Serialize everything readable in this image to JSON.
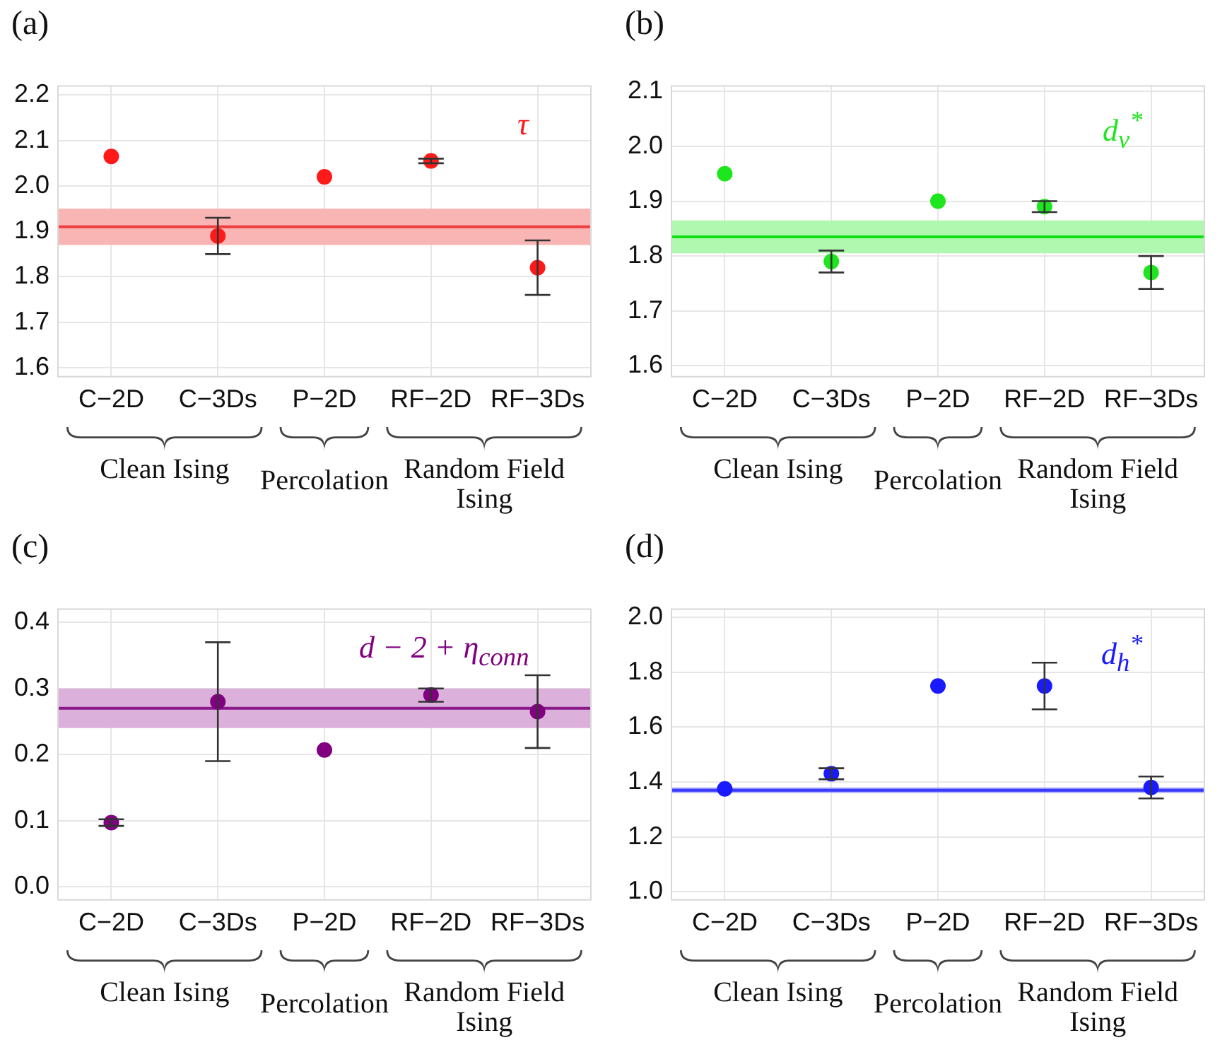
{
  "chart_data": [
    {
      "type": "scatter",
      "title": "(a)",
      "categories": [
        "C−2D",
        "C−3Ds",
        "P−2D",
        "RF−2D",
        "RF−3Ds"
      ],
      "series": [
        {
          "name": "τ",
          "color": "#ff1a1a",
          "values": [
            2.065,
            1.89,
            2.02,
            2.055,
            1.82
          ],
          "errors": [
            null,
            [
              1.85,
              1.93
            ],
            null,
            [
              2.05,
              2.06
            ],
            [
              1.76,
              1.88
            ]
          ]
        }
      ],
      "ylim": [
        1.58,
        2.22
      ],
      "yticks": [
        1.6,
        1.7,
        1.8,
        1.9,
        {
          "value": 2,
          "label": "2.0"
        },
        2.1,
        2.2
      ],
      "ref_lines": [
        {
          "axis": "y",
          "value": 1.91,
          "color": "#f03c3c"
        }
      ],
      "bands": [
        {
          "axis": "y",
          "from": 1.87,
          "to": 1.95,
          "color": "#f9b4b4"
        }
      ],
      "annotations": [
        "Clean Ising",
        "Percolation",
        "Random Field Ising"
      ],
      "grid": true,
      "marker": "circle"
    },
    {
      "type": "scatter",
      "title": "(b)",
      "categories": [
        "C−2D",
        "C−3Ds",
        "P−2D",
        "RF−2D",
        "RF−3Ds"
      ],
      "series": [
        {
          "name": "d$_{v}$$^{*}$",
          "color": "#1ee61e",
          "values": [
            1.95,
            1.79,
            1.9,
            1.89,
            1.77
          ],
          "errors": [
            null,
            [
              1.77,
              1.81
            ],
            null,
            [
              1.88,
              1.9
            ],
            [
              1.74,
              1.8
            ]
          ]
        }
      ],
      "ylim": [
        1.58,
        2.11
      ],
      "yticks": [
        1.6,
        1.7,
        1.8,
        1.9,
        {
          "value": 2,
          "label": "2.0"
        },
        2.1
      ],
      "ref_lines": [
        {
          "axis": "y",
          "value": 1.835,
          "color": "#10e010"
        }
      ],
      "bands": [
        {
          "axis": "y",
          "from": 1.805,
          "to": 1.865,
          "color": "#b0f7b0"
        }
      ],
      "annotations": [
        "Clean Ising",
        "Percolation",
        "Random Field Ising"
      ],
      "grid": true,
      "marker": "circle"
    },
    {
      "type": "scatter",
      "title": "(c)",
      "categories": [
        "C−2D",
        "C−3Ds",
        "P−2D",
        "RF−2D",
        "RF−3Ds"
      ],
      "series": [
        {
          "name": "d − 2 + η$_{conn}$",
          "color": "#800080",
          "values": [
            0.097,
            0.28,
            0.207,
            0.29,
            0.265
          ],
          "errors": [
            [
              0.092,
              0.102
            ],
            [
              0.19,
              0.37
            ],
            null,
            [
              0.28,
              0.3
            ],
            [
              0.21,
              0.32
            ]
          ]
        }
      ],
      "ylim": [
        -0.02,
        0.42
      ],
      "yticks": [
        {
          "value": 0,
          "label": "0.0"
        },
        0.1,
        0.2,
        0.3,
        0.4
      ],
      "ref_lines": [
        {
          "axis": "y",
          "value": 0.27,
          "color": "#8a1a8a"
        }
      ],
      "bands": [
        {
          "axis": "y",
          "from": 0.24,
          "to": 0.3,
          "color": "#dbb0db"
        }
      ],
      "annotations": [
        "Clean Ising",
        "Percolation",
        "Random Field Ising"
      ],
      "grid": true,
      "marker": "circle"
    },
    {
      "type": "scatter",
      "title": "(d)",
      "categories": [
        "C−2D",
        "C−3Ds",
        "P−2D",
        "RF−2D",
        "RF−3Ds"
      ],
      "series": [
        {
          "name": "d$_{h}$$^{*}$",
          "color": "#1a1aff",
          "values": [
            1.375,
            1.43,
            1.75,
            1.75,
            1.38
          ],
          "errors": [
            null,
            [
              1.41,
              1.45
            ],
            null,
            [
              1.665,
              1.835
            ],
            [
              1.34,
              1.42
            ]
          ]
        }
      ],
      "ylim": [
        0.97,
        2.03
      ],
      "yticks": [
        {
          "value": 1,
          "label": "1.0"
        },
        1.2,
        1.4,
        1.6,
        1.8,
        {
          "value": 2,
          "label": "2.0"
        }
      ],
      "ref_lines": [
        {
          "axis": "y",
          "value": 1.37,
          "color": "#3a3aff"
        }
      ],
      "bands": [
        {
          "axis": "y",
          "from": 1.36,
          "to": 1.38,
          "color": "#a9a9ff"
        }
      ],
      "annotations": [
        "Clean Ising",
        "Percolation",
        "Random Field Ising"
      ],
      "grid": true,
      "marker": "circle"
    }
  ]
}
